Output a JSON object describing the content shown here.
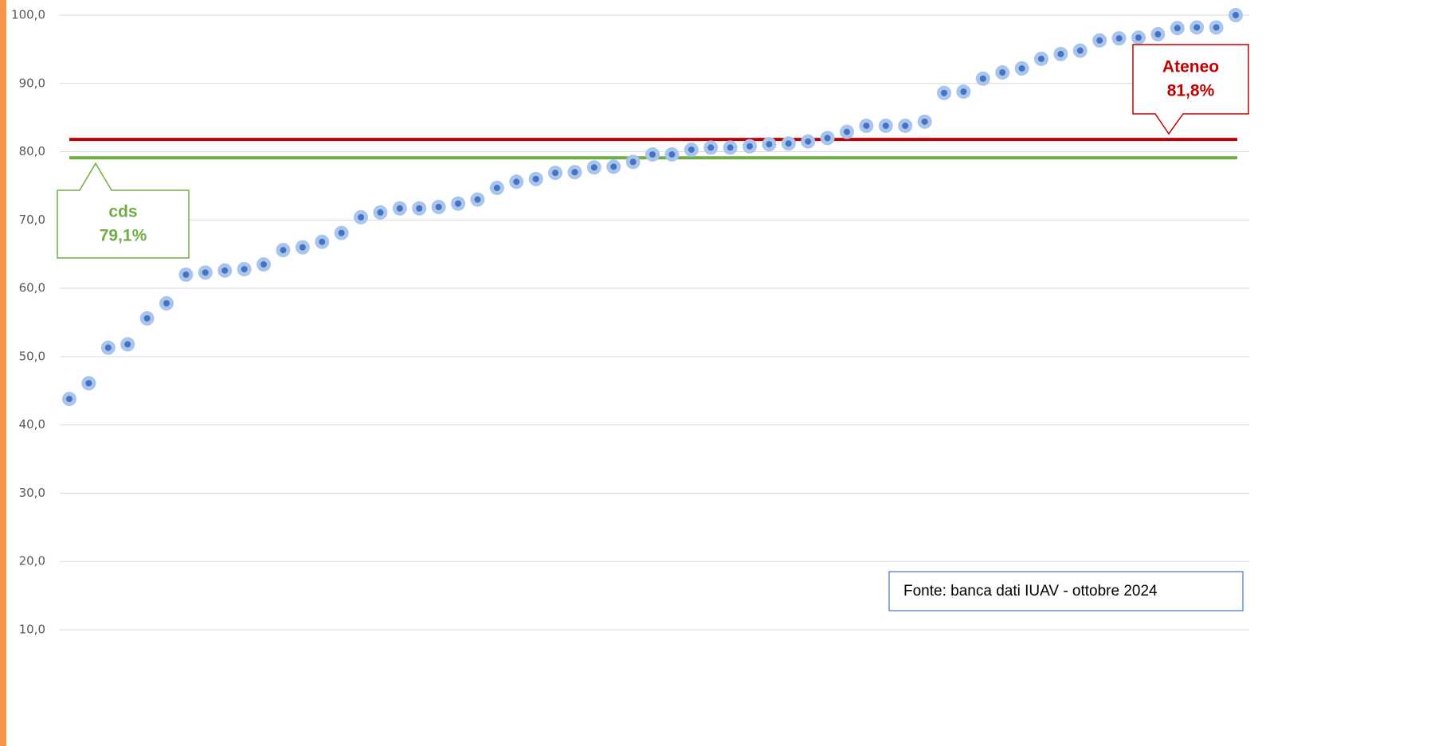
{
  "chart_data": {
    "type": "scatter",
    "series": [
      {
        "color": "#4472c4",
        "values": [
          43.8,
          46.1,
          51.3,
          51.8,
          55.6,
          57.8,
          62.0,
          62.3,
          62.6,
          62.8,
          63.5,
          65.6,
          66.0,
          66.8,
          68.1,
          70.4,
          71.1,
          71.7,
          71.7,
          71.9,
          72.4,
          73.0,
          74.7,
          75.6,
          76.0,
          76.9,
          77.0,
          77.7,
          77.8,
          78.5,
          79.6,
          79.6,
          80.3,
          80.6,
          80.6,
          80.8,
          81.1,
          81.2,
          81.5,
          82.0,
          82.9,
          83.8,
          83.8,
          83.8,
          84.4,
          88.6,
          88.8,
          90.7,
          91.6,
          92.2,
          93.6,
          94.3,
          94.8,
          96.3,
          96.6,
          96.7,
          97.2,
          98.1,
          98.2,
          98.2,
          100.0
        ]
      }
    ],
    "reference_lines": [
      {
        "name": "Ateneo",
        "value": 81.8,
        "value_label": "81,8%",
        "color": "#c00000"
      },
      {
        "name": "cds",
        "value": 79.1,
        "value_label": "79,1%",
        "color": "#70ad47"
      }
    ],
    "ylim": [
      10,
      100
    ],
    "yticks": [
      {
        "value": 10,
        "label": "10,0"
      },
      {
        "value": 20,
        "label": "20,0"
      },
      {
        "value": 30,
        "label": "30,0"
      },
      {
        "value": 40,
        "label": "40,0"
      },
      {
        "value": 50,
        "label": "50,0"
      },
      {
        "value": 60,
        "label": "60,0"
      },
      {
        "value": 70,
        "label": "70,0"
      },
      {
        "value": 80,
        "label": "80,0"
      },
      {
        "value": 90,
        "label": "90,0"
      },
      {
        "value": 100,
        "label": "100,0"
      }
    ],
    "grid": true,
    "annotation": "Fonte: banca dati IUAV - ottobre 2024"
  }
}
